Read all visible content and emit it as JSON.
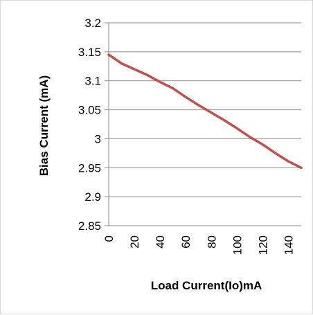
{
  "chart_data": {
    "type": "line",
    "title": "",
    "xlabel": "Load Current(Io)mA",
    "ylabel": "Bias Current (mA)",
    "x_ticks": [
      "0",
      "20",
      "40",
      "60",
      "80",
      "100",
      "120",
      "140"
    ],
    "y_ticks": [
      "2.85",
      "2.9",
      "2.95",
      "3",
      "3.05",
      "3.1",
      "3.15",
      "3.2"
    ],
    "xlim": [
      0,
      150
    ],
    "ylim": [
      2.85,
      3.2
    ],
    "grid": "horizontal",
    "legend": "none",
    "series": [
      {
        "color": "#c0504d",
        "x": [
          0,
          10,
          20,
          30,
          40,
          50,
          60,
          70,
          80,
          90,
          100,
          110,
          120,
          130,
          140,
          150
        ],
        "y": [
          3.145,
          3.13,
          3.12,
          3.11,
          3.098,
          3.087,
          3.072,
          3.058,
          3.045,
          3.032,
          3.018,
          3.003,
          2.99,
          2.975,
          2.961,
          2.95
        ]
      }
    ]
  }
}
